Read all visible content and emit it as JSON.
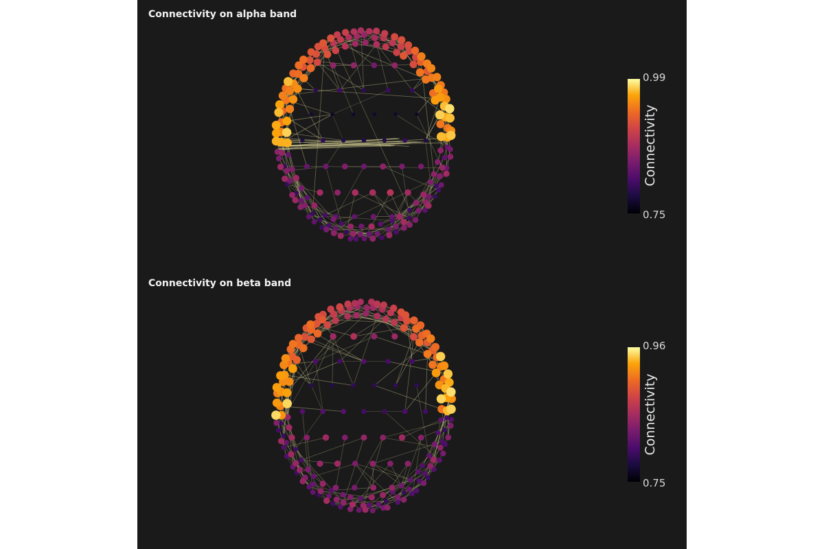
{
  "chart_data": [
    {
      "type": "scatter",
      "subtype": "3d-network-graph",
      "title": "Connectivity on alpha band",
      "colorscale": "inferno",
      "colorbar": {
        "title": "Connectivity",
        "min": 0.75,
        "max": 0.99,
        "min_label": "0.75",
        "max_label": "0.99"
      },
      "background": "#1a1a1a",
      "edge_color": "#e6e0a0",
      "notes": "Nodes arranged on a spherical head surface; hot (yellow/orange) nodes concentrated along upper-left and upper-right rim; long horizontal edges across the middle."
    },
    {
      "type": "scatter",
      "subtype": "3d-network-graph",
      "title": "Connectivity on beta band",
      "colorscale": "inferno",
      "colorbar": {
        "title": "Connectivity",
        "min": 0.75,
        "max": 0.96,
        "min_label": "0.75",
        "max_label": "0.96"
      },
      "background": "#1a1a1a",
      "edge_color": "#e6e0a0",
      "notes": "Nodes arranged on a spherical head surface; hot nodes along upper rim."
    }
  ]
}
